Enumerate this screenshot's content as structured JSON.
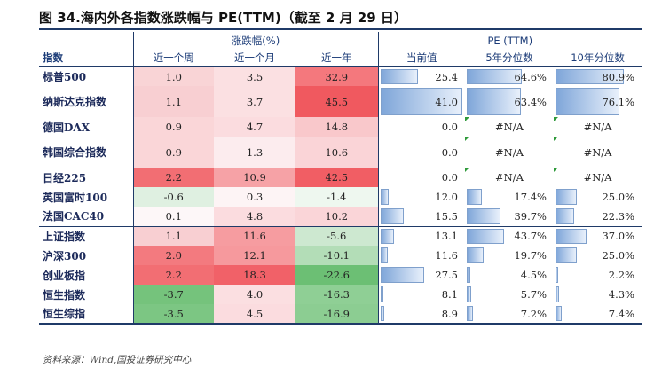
{
  "title": "图 34.海内外各指数涨跌幅与 PE(TTM)（截至 2 月 29 日）",
  "header": {
    "group_change": "涨跌幅(%)",
    "group_pe": "PE (TTM)",
    "col_name": "指数",
    "col_week": "近一个周",
    "col_month": "近一个月",
    "col_year": "近一年",
    "col_pe": "当前值",
    "col_pct5": "5年分位数",
    "col_pct10": "10年分位数"
  },
  "rows": [
    {
      "name": "标普500",
      "week": "1.0",
      "month": "3.5",
      "year": "32.9",
      "pe": "25.4",
      "pct5": "64.6%",
      "pct10": "80.9%",
      "pe_f": 0.45,
      "p5_f": 0.646,
      "p10_f": 0.809,
      "c_week": "#f9d4d6",
      "c_month": "#fbe0e2",
      "c_year": "#f4787d"
    },
    {
      "name": "纳斯达克指数",
      "week": "1.1",
      "month": "3.7",
      "year": "45.5",
      "pe": "41.0",
      "pct5": "63.4%",
      "pct10": "76.1%",
      "pe_f": 0.98,
      "p5_f": 0.634,
      "p10_f": 0.761,
      "c_week": "#f8cfd2",
      "c_month": "#fbe0e2",
      "c_year": "#f0595f"
    },
    {
      "name": "德国DAX",
      "week": "0.9",
      "month": "4.7",
      "year": "14.8",
      "pe": "0.0",
      "pct5": "#N/A",
      "pct10": "#N/A",
      "pe_f": 0,
      "p5_f": 0,
      "p10_f": 0,
      "c_week": "#fad6d8",
      "c_month": "#fbdcdf",
      "c_year": "#f9c8cb"
    },
    {
      "name": "韩国综合指数",
      "week": "0.9",
      "month": "1.3",
      "year": "10.6",
      "pe": "0.0",
      "pct5": "#N/A",
      "pct10": "#N/A",
      "pe_f": 0,
      "p5_f": 0,
      "p10_f": 0,
      "c_week": "#fad6d8",
      "c_month": "#fcecee",
      "c_year": "#fad4d7"
    },
    {
      "name": "日经225",
      "week": "2.2",
      "month": "10.9",
      "year": "42.5",
      "pe": "0.0",
      "pct5": "#N/A",
      "pct10": "#N/A",
      "pe_f": 0,
      "p5_f": 0,
      "p10_f": 0,
      "c_week": "#f26e73",
      "c_month": "#f6a2a6",
      "c_year": "#f15e64"
    },
    {
      "name": "英国富时100",
      "week": "-0.6",
      "month": "0.3",
      "year": "-1.4",
      "pe": "12.0",
      "pct5": "17.4%",
      "pct10": "25.0%",
      "pe_f": 0.1,
      "p5_f": 0.174,
      "p10_f": 0.25,
      "c_week": "#dff0e1",
      "c_month": "#fdf4f5",
      "c_year": "#eef7ef"
    },
    {
      "name": "法国CAC40",
      "week": "0.1",
      "month": "4.8",
      "year": "10.2",
      "pe": "15.5",
      "pct5": "39.7%",
      "pct10": "22.3%",
      "pe_f": 0.28,
      "p5_f": 0.397,
      "p10_f": 0.223,
      "c_week": "#fdf7f8",
      "c_month": "#fbdcdf",
      "c_year": "#fad5d8"
    },
    {
      "name": "上证指数",
      "week": "1.1",
      "month": "11.6",
      "year": "-5.6",
      "pe": "13.1",
      "pct5": "43.7%",
      "pct10": "37.0%",
      "pe_f": 0.16,
      "p5_f": 0.437,
      "p10_f": 0.37,
      "c_week": "#f8cfd2",
      "c_month": "#f69ca0",
      "c_year": "#cde8d0"
    },
    {
      "name": "沪深300",
      "week": "2.0",
      "month": "12.1",
      "year": "-10.1",
      "pe": "11.6",
      "pct5": "19.7%",
      "pct10": "25.0%",
      "pe_f": 0.09,
      "p5_f": 0.197,
      "p10_f": 0.25,
      "c_week": "#f37a7f",
      "c_month": "#f6999d",
      "c_year": "#b3ddb7"
    },
    {
      "name": "创业板指",
      "week": "2.2",
      "month": "18.3",
      "year": "-22.6",
      "pe": "27.5",
      "pct5": "4.5%",
      "pct10": "2.2%",
      "pe_f": 0.52,
      "p5_f": 0.045,
      "p10_f": 0.022,
      "c_week": "#f26e73",
      "c_month": "#f16168",
      "c_year": "#6cbf74"
    },
    {
      "name": "恒生指数",
      "week": "-3.7",
      "month": "4.0",
      "year": "-16.3",
      "pe": "8.1",
      "pct5": "5.7%",
      "pct10": "4.3%",
      "pe_f": 0.02,
      "p5_f": 0.057,
      "p10_f": 0.043,
      "c_week": "#75c37c",
      "c_month": "#fbdfe1",
      "c_year": "#8fcf95"
    },
    {
      "name": "恒生综指",
      "week": "-3.5",
      "month": "4.5",
      "year": "-16.9",
      "pe": "8.9",
      "pct5": "7.2%",
      "pct10": "7.4%",
      "pe_f": 0.04,
      "p5_f": 0.072,
      "p10_f": 0.074,
      "c_week": "#7cc683",
      "c_month": "#fbdcdf",
      "c_year": "#8ccd92"
    }
  ],
  "source": "资料来源：Wind,国投证券研究中心"
}
